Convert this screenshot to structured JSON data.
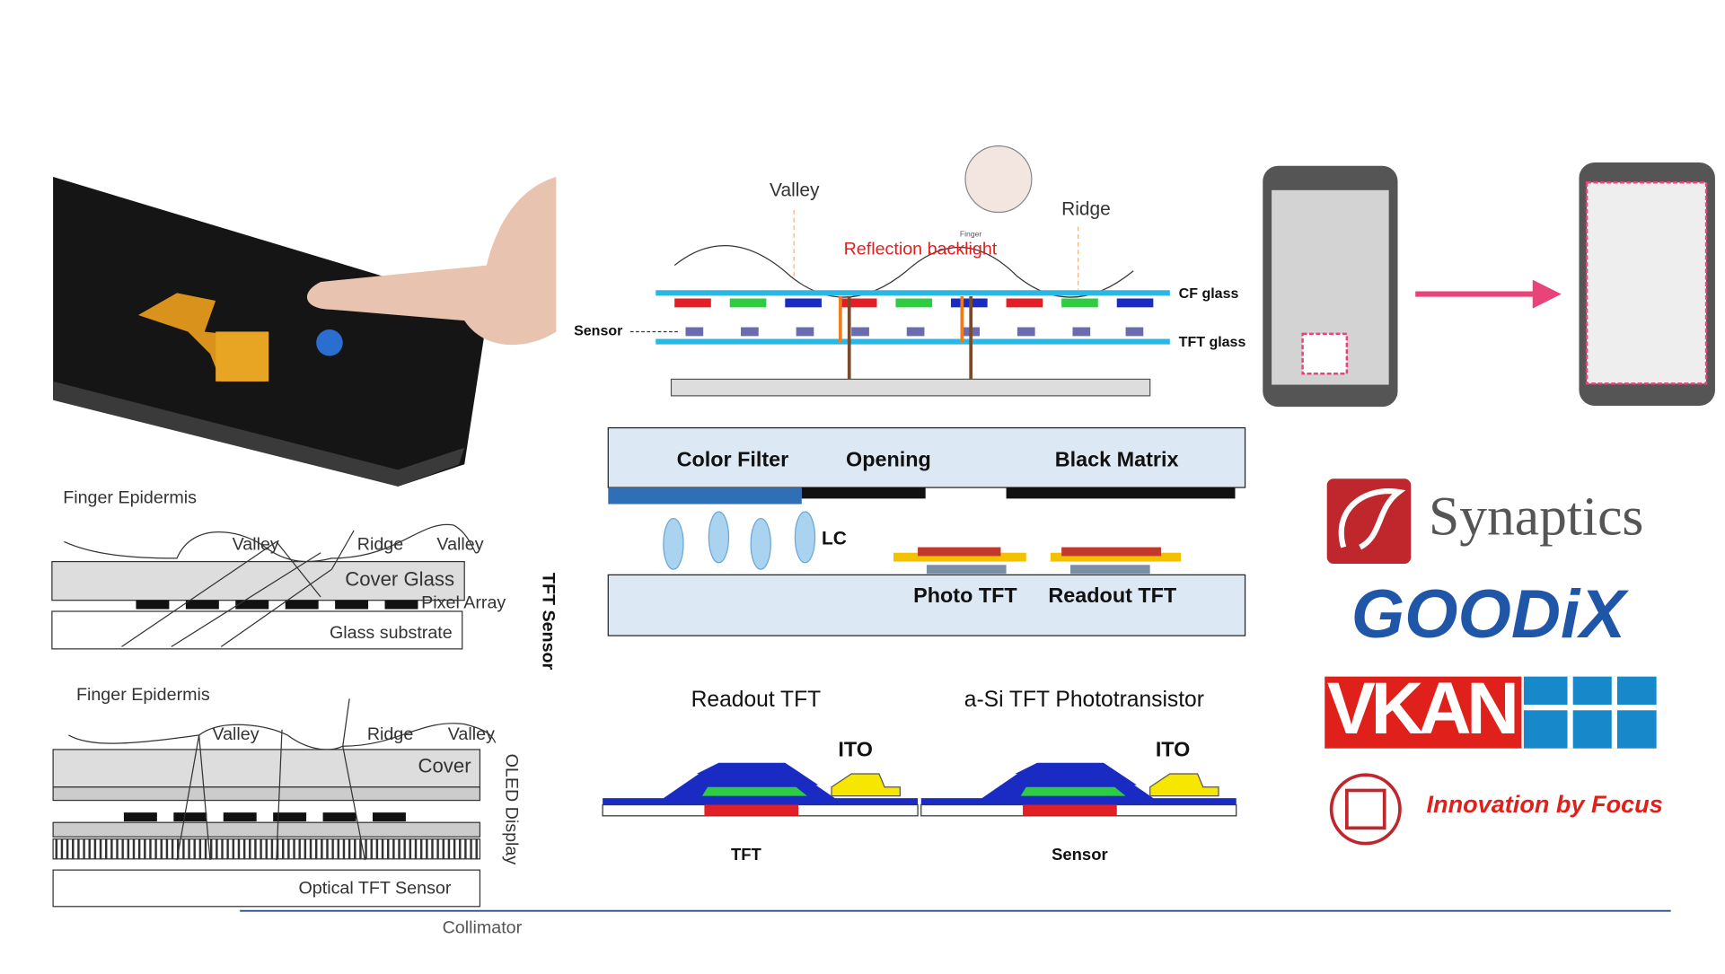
{
  "photo_panel": {},
  "tft_sensor_diagram": {
    "finger": "Finger Epidermis",
    "valley_1": "Valley",
    "ridge": "Ridge",
    "valley_2": "Valley",
    "cover": "Cover Glass",
    "pixel": "Pixel Array",
    "substrate": "Glass substrate",
    "side": "TFT Sensor"
  },
  "oled_diagram": {
    "finger": "Finger Epidermis",
    "valley_1": "Valley",
    "ridge": "Ridge",
    "valley_2": "Valley",
    "cover": "Cover",
    "display": "OLED Display",
    "sensor": "Optical TFT Sensor",
    "collimator": "Collimator"
  },
  "reflection_diagram": {
    "valley": "Valley",
    "ridge": "Ridge",
    "backlight": "Reflection backlight",
    "finger": "Finger",
    "cf": "CF glass",
    "sensor": "Sensor",
    "tft": "TFT glass"
  },
  "lcd_diagram": {
    "color_filter": "Color Filter",
    "opening": "Opening",
    "black_matrix": "Black Matrix",
    "lc": "LC",
    "photo": "Photo TFT",
    "readout": "Readout TFT"
  },
  "stack_diagram": {
    "left_title": "Readout TFT",
    "right_title": "a-Si TFT Phototransistor",
    "left_ito": "ITO",
    "right_ito": "ITO",
    "left_label": "TFT",
    "right_label": "Sensor"
  },
  "logos": {
    "synaptics": "Synaptics",
    "goodix": "GOODiX",
    "vkansee": "VKAN",
    "tagline": "Innovation by Focus"
  }
}
